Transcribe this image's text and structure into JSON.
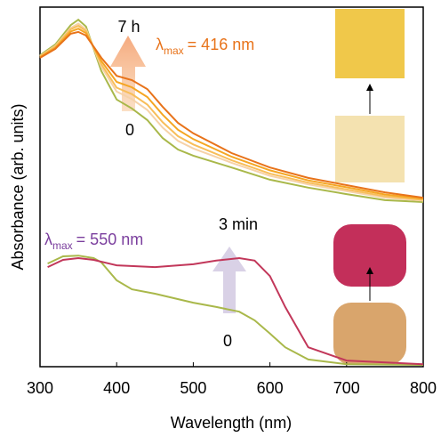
{
  "chart_data": {
    "type": "line",
    "xlabel": "Wavelength (nm)",
    "ylabel": "Absorbance (arb. units)",
    "xlim": [
      300,
      800
    ],
    "xticks": [
      300,
      400,
      500,
      600,
      700,
      800
    ],
    "ylim": [
      0,
      100
    ],
    "series": [
      {
        "color": "#a9b84a",
        "x": [
          300,
          320,
          340,
          350,
          360,
          380,
          400,
          420,
          440,
          460,
          480,
          500,
          550,
          600,
          650,
          700,
          750,
          800
        ],
        "values": [
          86.6,
          89.6,
          95.0,
          96.5,
          94.6,
          82.2,
          74.3,
          71.8,
          68.6,
          63.6,
          60.4,
          58.7,
          55.4,
          52.0,
          49.8,
          48.0,
          46.3,
          45.8
        ]
      },
      {
        "color": "#f6d2a8",
        "x": [
          300,
          320,
          340,
          350,
          360,
          380,
          400,
          420,
          440,
          460,
          480,
          500,
          550,
          600,
          650,
          700,
          750,
          800
        ],
        "values": [
          86.4,
          89.2,
          94.2,
          95.4,
          93.8,
          83.4,
          76.5,
          74.4,
          71.4,
          66.5,
          62.8,
          60.7,
          56.7,
          53.1,
          50.7,
          48.8,
          47.0,
          46.2
        ]
      },
      {
        "color": "#f8be5a",
        "x": [
          300,
          320,
          340,
          350,
          360,
          380,
          400,
          420,
          440,
          460,
          480,
          500,
          550,
          600,
          650,
          700,
          750,
          800
        ],
        "values": [
          86.3,
          89.0,
          93.8,
          94.8,
          93.4,
          84.1,
          77.6,
          75.8,
          72.9,
          68.0,
          64.1,
          61.8,
          57.4,
          53.7,
          51.2,
          49.3,
          47.4,
          46.4
        ]
      },
      {
        "color": "#f5a623",
        "x": [
          300,
          320,
          340,
          350,
          360,
          380,
          400,
          420,
          440,
          460,
          480,
          500,
          550,
          600,
          650,
          700,
          750,
          800
        ],
        "values": [
          86.1,
          88.7,
          93.2,
          94.0,
          92.8,
          85.0,
          79.2,
          77.7,
          75.0,
          70.1,
          65.9,
          63.3,
          58.4,
          54.6,
          51.8,
          49.9,
          47.9,
          46.7
        ]
      },
      {
        "color": "#e8731a",
        "x": [
          300,
          320,
          340,
          350,
          360,
          380,
          400,
          420,
          440,
          460,
          480,
          500,
          550,
          600,
          650,
          700,
          750,
          800
        ],
        "values": [
          85.9,
          88.4,
          92.6,
          93.1,
          92.1,
          85.9,
          80.9,
          79.7,
          77.2,
          72.3,
          67.8,
          64.9,
          59.4,
          55.4,
          52.5,
          50.5,
          48.5,
          47.0
        ]
      },
      {
        "color": "#a9b84a",
        "x": [
          310,
          330,
          350,
          370,
          380,
          400,
          420,
          450,
          500,
          530,
          560,
          580,
          600,
          620,
          650,
          700,
          800
        ],
        "values": [
          28.7,
          30.7,
          30.9,
          30.2,
          29.0,
          24.0,
          21.5,
          20.3,
          17.8,
          16.6,
          15.3,
          12.9,
          9.2,
          5.4,
          2.0,
          0.7,
          0.5
        ]
      },
      {
        "color": "#c2375a",
        "x": [
          310,
          330,
          350,
          370,
          400,
          450,
          500,
          530,
          560,
          580,
          600,
          620,
          650,
          700,
          800
        ],
        "values": [
          27.7,
          29.7,
          30.2,
          29.7,
          28.2,
          27.7,
          28.5,
          29.5,
          30.2,
          29.5,
          25.2,
          16.6,
          5.4,
          1.7,
          0.7
        ]
      }
    ],
    "annotations": [
      {
        "text": "7 h"
      },
      {
        "text": "0"
      },
      {
        "text": "3 min"
      },
      {
        "text": "0"
      },
      {
        "text": "λ",
        "sub": "max",
        "rest": "= 416 nm",
        "color": "#e8731a"
      },
      {
        "text": "λ",
        "sub": "max",
        "rest": "= 550 nm",
        "color": "#7b3f9e"
      }
    ]
  }
}
